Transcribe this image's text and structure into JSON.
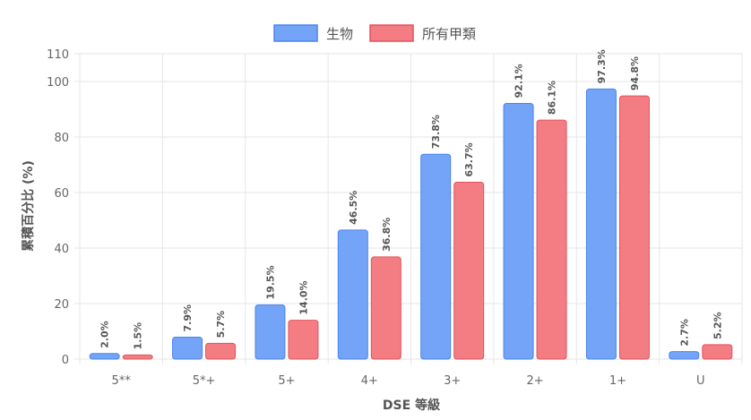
{
  "chart_data": {
    "type": "bar",
    "categories": [
      "5**",
      "5*+",
      "5+",
      "4+",
      "3+",
      "2+",
      "1+",
      "U"
    ],
    "series": [
      {
        "name": "生物",
        "values": [
          2.0,
          7.9,
          19.5,
          46.5,
          73.8,
          92.1,
          97.3,
          2.7
        ],
        "labels": [
          "2.0%",
          "7.9%",
          "19.5%",
          "46.5%",
          "73.8%",
          "92.1%",
          "97.3%",
          "2.7%"
        ],
        "fill": "#73a4f7",
        "stroke": "#4a84f0"
      },
      {
        "name": "所有甲類",
        "values": [
          1.5,
          5.7,
          14.0,
          36.8,
          63.7,
          86.1,
          94.8,
          5.2
        ],
        "labels": [
          "1.5%",
          "5.7%",
          "14.0%",
          "36.8%",
          "63.7%",
          "86.1%",
          "94.8%",
          "5.2%"
        ],
        "fill": "#f37d83",
        "stroke": "#e2535a"
      }
    ],
    "xlabel": "DSE 等級",
    "ylabel": "累積百分比 (%)",
    "ylim": [
      0,
      110
    ],
    "yticks": [
      "0",
      "20",
      "40",
      "60",
      "80",
      "100",
      "110"
    ],
    "grid": true,
    "legend_position": "top-center"
  }
}
